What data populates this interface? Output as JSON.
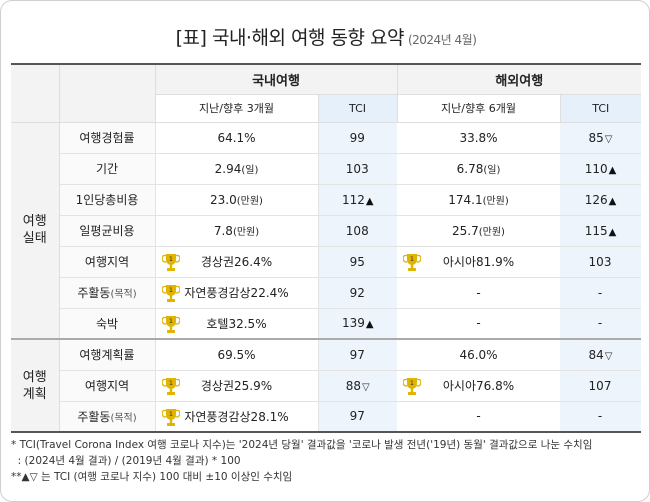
{
  "title": {
    "main": "[표] 국내·해외 여행 동향 요약",
    "sub": "(2024년 4월)"
  },
  "header": {
    "domestic": "국내여행",
    "overseas": "해외여행",
    "domestic_period": "지난/향후 3개월",
    "overseas_period": "지난/향후 6개월",
    "tci": "TCI"
  },
  "groups": {
    "status": [
      "여행",
      "실태"
    ],
    "plan": [
      "여행",
      "계획"
    ]
  },
  "rows": [
    {
      "label": "여행경험률",
      "label_small": "",
      "dom": "64.1%",
      "dom_small": "",
      "dom_trophy": false,
      "dom_tci": "99",
      "dom_arrow": "",
      "ovs": "33.8%",
      "ovs_small": "",
      "ovs_trophy": false,
      "ovs_tci": "85",
      "ovs_arrow": "▽"
    },
    {
      "label": "기간",
      "label_small": "",
      "dom": "2.94",
      "dom_small": "(일)",
      "dom_trophy": false,
      "dom_tci": "103",
      "dom_arrow": "",
      "ovs": "6.78",
      "ovs_small": "(일)",
      "ovs_trophy": false,
      "ovs_tci": "110",
      "ovs_arrow": "▲"
    },
    {
      "label": "1인당총비용",
      "label_small": "",
      "dom": "23.0",
      "dom_small": "(만원)",
      "dom_trophy": false,
      "dom_tci": "112",
      "dom_arrow": "▲",
      "ovs": "174.1",
      "ovs_small": "(만원)",
      "ovs_trophy": false,
      "ovs_tci": "126",
      "ovs_arrow": "▲"
    },
    {
      "label": "일평균비용",
      "label_small": "",
      "dom": "7.8",
      "dom_small": "(만원)",
      "dom_trophy": false,
      "dom_tci": "108",
      "dom_arrow": "",
      "ovs": "25.7",
      "ovs_small": "(만원)",
      "ovs_trophy": false,
      "ovs_tci": "115",
      "ovs_arrow": "▲"
    },
    {
      "label": "여행지역",
      "label_small": "",
      "dom": "경상권26.4%",
      "dom_small": "",
      "dom_trophy": true,
      "dom_tci": "95",
      "dom_arrow": "",
      "ovs": "아시아81.9%",
      "ovs_small": "",
      "ovs_trophy": true,
      "ovs_tci": "103",
      "ovs_arrow": ""
    },
    {
      "label": "주활동",
      "label_small": "(목적)",
      "dom": "자연풍경감상22.4%",
      "dom_small": "",
      "dom_trophy": true,
      "dom_tci": "92",
      "dom_arrow": "",
      "ovs": "-",
      "ovs_small": "",
      "ovs_trophy": false,
      "ovs_tci": "-",
      "ovs_arrow": ""
    },
    {
      "label": "숙박",
      "label_small": "",
      "dom": "호텔32.5%",
      "dom_small": "",
      "dom_trophy": true,
      "dom_tci": "139",
      "dom_arrow": "▲",
      "ovs": "-",
      "ovs_small": "",
      "ovs_trophy": false,
      "ovs_tci": "-",
      "ovs_arrow": ""
    },
    {
      "label": "여행계획률",
      "label_small": "",
      "dom": "69.5%",
      "dom_small": "",
      "dom_trophy": false,
      "dom_tci": "97",
      "dom_arrow": "",
      "ovs": "46.0%",
      "ovs_small": "",
      "ovs_trophy": false,
      "ovs_tci": "84",
      "ovs_arrow": "▽"
    },
    {
      "label": "여행지역",
      "label_small": "",
      "dom": "경상권25.9%",
      "dom_small": "",
      "dom_trophy": true,
      "dom_tci": "88",
      "dom_arrow": "▽",
      "ovs": "아시아76.8%",
      "ovs_small": "",
      "ovs_trophy": true,
      "ovs_tci": "107",
      "ovs_arrow": ""
    },
    {
      "label": "주활동",
      "label_small": "(목적)",
      "dom": "자연풍경감상28.1%",
      "dom_small": "",
      "dom_trophy": true,
      "dom_tci": "97",
      "dom_arrow": "",
      "ovs": "-",
      "ovs_small": "",
      "ovs_trophy": false,
      "ovs_tci": "-",
      "ovs_arrow": ""
    }
  ],
  "trophy_rank": "1",
  "colors": {
    "trophy": "#e0b400",
    "tci_bg": "#edf4fc",
    "header_bg": "#f3f3f3"
  },
  "notes": [
    "* TCI(Travel Corona Index 여행 코로나 지수)는 '2024년 당월' 결과값을 '코로나 발생 전년('19년) 동월' 결과값으로 나눈 수치임",
    "  : (2024년 4월 결과) / (2019년 4월 결과) * 100",
    "**▲▽ 는 TCI (여행 코로나 지수) 100 대비 ±10 이상인 수치임"
  ]
}
